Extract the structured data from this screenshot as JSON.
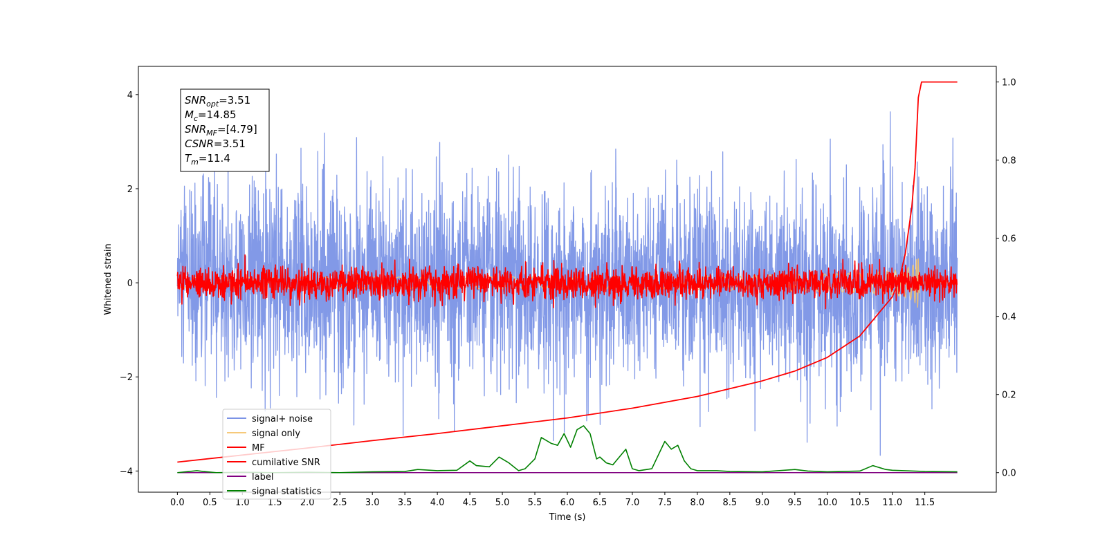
{
  "chart_data": {
    "type": "line",
    "xlabel": "Time (s)",
    "ylabel": "Whitened strain",
    "xlim": [
      -0.6,
      12.6
    ],
    "ylim": [
      -4.45,
      4.6
    ],
    "y2lim": [
      -0.05,
      1.04
    ],
    "x_ticks": [
      0,
      0.5,
      1,
      1.5,
      2,
      2.5,
      3,
      3.5,
      4,
      4.5,
      5,
      5.5,
      6,
      6.5,
      7,
      7.5,
      8,
      8.5,
      9,
      9.5,
      10,
      10.5,
      11,
      11.5
    ],
    "x_tick_labels": [
      "0.0",
      "0.5",
      "1.0",
      "1.5",
      "2.0",
      "2.5",
      "3.0",
      "3.5",
      "4.0",
      "4.5",
      "5.0",
      "5.5",
      "6.0",
      "6.5",
      "7.0",
      "7.5",
      "8.0",
      "8.5",
      "9.0",
      "9.5",
      "10.0",
      "10.5",
      "11.0",
      "11.5"
    ],
    "y_ticks": [
      -4,
      -2,
      0,
      2,
      4
    ],
    "y_tick_labels": [
      "−4",
      "−2",
      "0",
      "2",
      "4"
    ],
    "y2_ticks": [
      0,
      0.2,
      0.4,
      0.6,
      0.8,
      1.0
    ],
    "y2_tick_labels": [
      "0.0",
      "0.2",
      "0.4",
      "0.6",
      "0.8",
      "1.0"
    ],
    "x_range": [
      0,
      12
    ],
    "legend_location": "lower-left",
    "annotation": [
      {
        "var": "SNR",
        "sub": "opt",
        "value": "=3.51"
      },
      {
        "var": "M",
        "sub": "c",
        "value": "=14.85"
      },
      {
        "var": "SNR",
        "sub": "MF",
        "value": "=[4.79]"
      },
      {
        "var": "CSNR",
        "sub": "",
        "value": "=3.51"
      },
      {
        "var": "T",
        "sub": "m",
        "value": "=11.4"
      }
    ],
    "series": [
      {
        "name": "signal+ noise",
        "color": "#7b93e6",
        "axis": "left",
        "kind": "noise",
        "amplitude_std": 1.05,
        "max_abs": 4.1
      },
      {
        "name": "signal only",
        "color": "#f5c36b",
        "axis": "left",
        "kind": "chirp",
        "merger_time": 11.4,
        "peak_amplitude": 0.55
      },
      {
        "name": "MF",
        "color": "#ff0000",
        "axis": "left",
        "kind": "noise",
        "amplitude_std": 0.17,
        "max_abs": 1.0
      },
      {
        "name": "cumilative SNR",
        "color": "#ff0000",
        "axis": "right",
        "x": [
          0,
          1,
          2,
          3,
          4,
          5,
          6,
          7,
          8,
          9,
          9.5,
          10,
          10.5,
          11,
          11.1,
          11.2,
          11.3,
          11.35,
          11.4,
          11.45,
          12
        ],
        "values": [
          0.027,
          0.045,
          0.063,
          0.082,
          0.1,
          0.12,
          0.14,
          0.165,
          0.195,
          0.235,
          0.26,
          0.295,
          0.35,
          0.45,
          0.49,
          0.56,
          0.68,
          0.78,
          0.96,
          1.0,
          1.0
        ]
      },
      {
        "name": "label",
        "color": "#800080",
        "axis": "right",
        "x": [
          0,
          12
        ],
        "values": [
          0.0,
          0.0
        ]
      },
      {
        "name": "signal statistics",
        "color": "#008000",
        "axis": "right",
        "x": [
          0,
          0.3,
          0.4,
          0.6,
          1.0,
          1.5,
          2.0,
          2.5,
          3.0,
          3.5,
          3.7,
          4.0,
          4.3,
          4.5,
          4.6,
          4.8,
          4.95,
          5.1,
          5.25,
          5.35,
          5.5,
          5.6,
          5.75,
          5.85,
          5.95,
          6.05,
          6.15,
          6.25,
          6.35,
          6.45,
          6.5,
          6.6,
          6.7,
          6.9,
          7.0,
          7.1,
          7.3,
          7.5,
          7.6,
          7.7,
          7.8,
          7.9,
          8.0,
          8.3,
          8.5,
          9.0,
          9.5,
          9.7,
          10.0,
          10.5,
          10.7,
          10.9,
          11.0,
          11.5,
          12
        ],
        "values": [
          0.0,
          0.005,
          0.003,
          0.0,
          0.001,
          0.0,
          0.001,
          0.0,
          0.002,
          0.003,
          0.008,
          0.005,
          0.006,
          0.03,
          0.018,
          0.015,
          0.04,
          0.025,
          0.005,
          0.01,
          0.035,
          0.09,
          0.075,
          0.07,
          0.1,
          0.065,
          0.11,
          0.12,
          0.1,
          0.035,
          0.04,
          0.025,
          0.02,
          0.06,
          0.01,
          0.005,
          0.01,
          0.08,
          0.06,
          0.07,
          0.03,
          0.01,
          0.005,
          0.005,
          0.003,
          0.002,
          0.008,
          0.004,
          0.002,
          0.004,
          0.018,
          0.008,
          0.006,
          0.003,
          0.002
        ]
      }
    ]
  }
}
